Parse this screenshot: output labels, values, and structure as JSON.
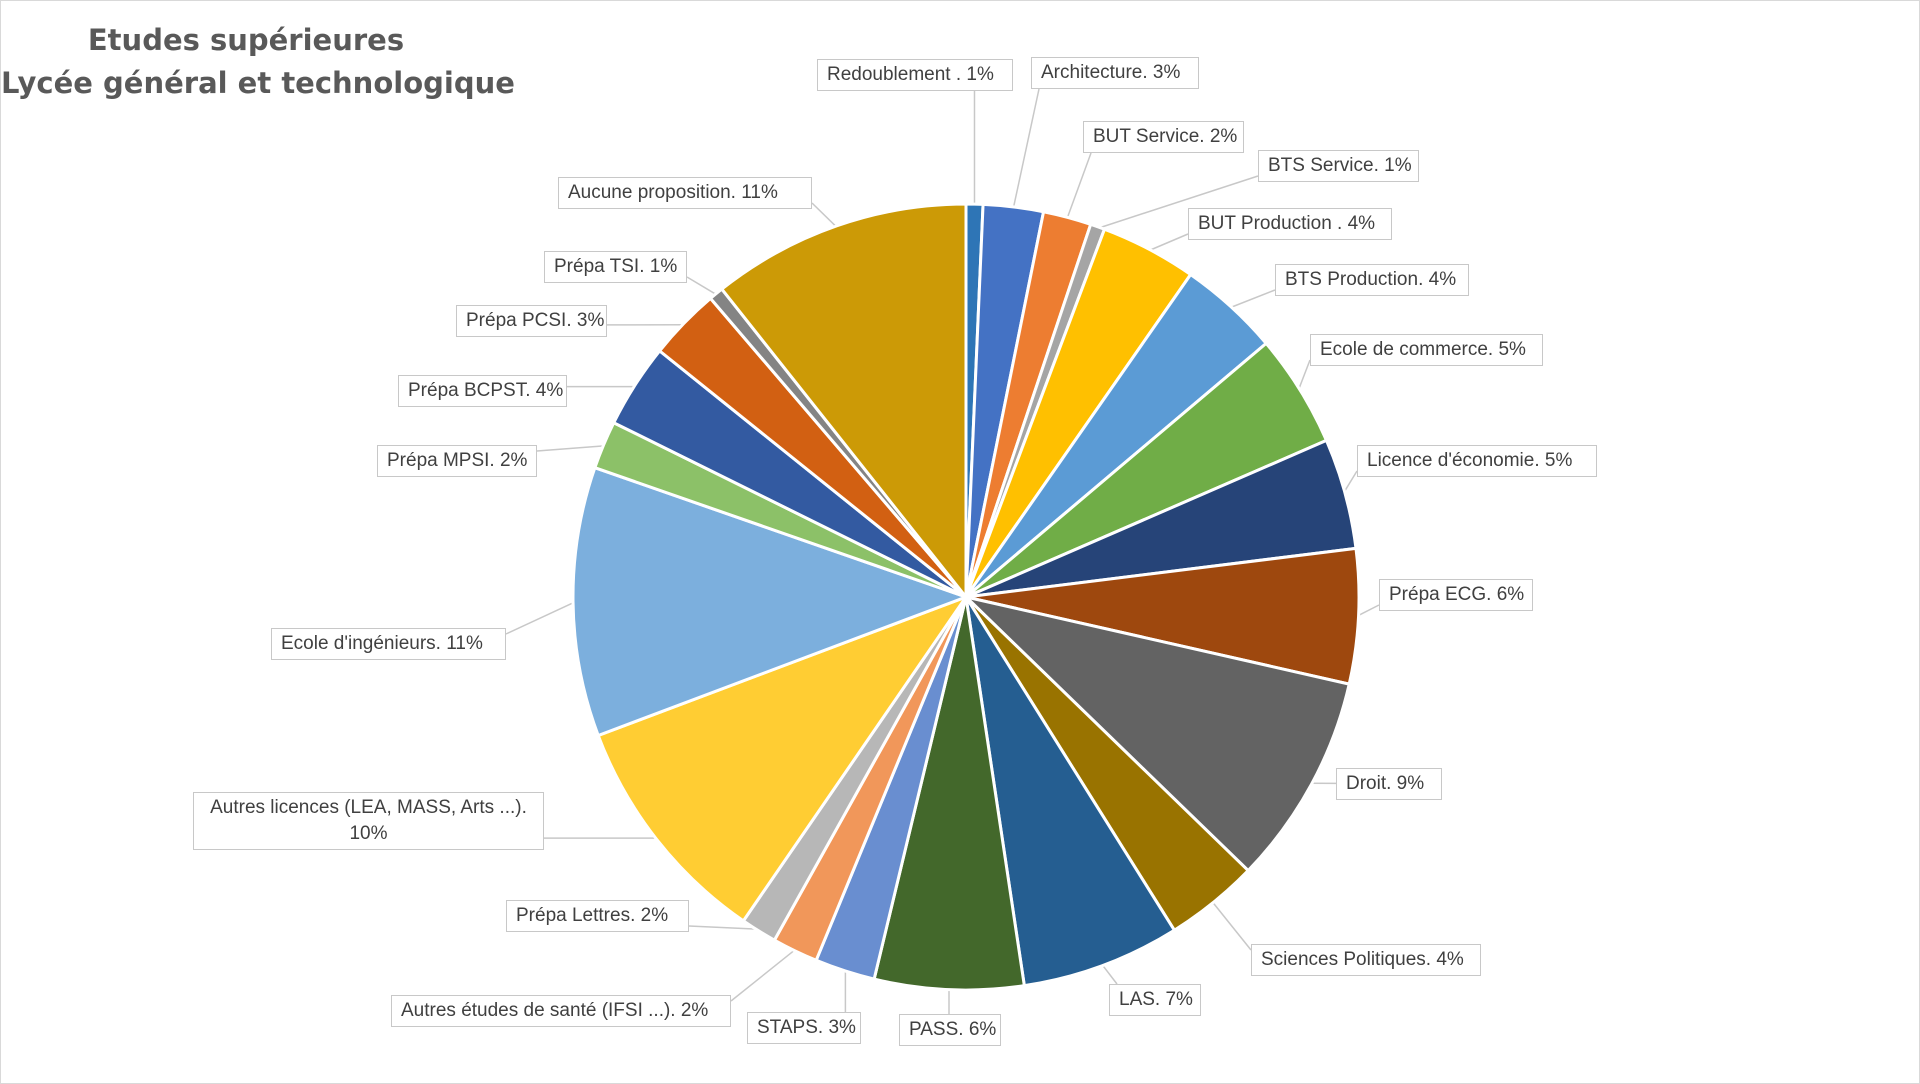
{
  "chart_data": {
    "type": "pie",
    "title": [
      "Etudes supérieures",
      "Lycée général et technologique"
    ],
    "slices": [
      {
        "label": "Redoublement . 1%",
        "value": 0.7,
        "color": "#2E75B6"
      },
      {
        "label": "Architecture. 3%",
        "value": 2.5,
        "color": "#4472C4"
      },
      {
        "label": "BUT Service. 2%",
        "value": 2.0,
        "color": "#ED7D31"
      },
      {
        "label": "BTS Service. 1%",
        "value": 0.6,
        "color": "#A5A5A5"
      },
      {
        "label": "BUT Production . 4%",
        "value": 4.0,
        "color": "#FFC000"
      },
      {
        "label": "BTS Production. 4%",
        "value": 4.2,
        "color": "#5B9BD5"
      },
      {
        "label": "Ecole de commerce. 5%",
        "value": 4.7,
        "color": "#70AD47"
      },
      {
        "label": "Licence d'économie. 5%",
        "value": 4.6,
        "color": "#264478"
      },
      {
        "label": "Prépa ECG. 6%",
        "value": 5.6,
        "color": "#9E480E"
      },
      {
        "label": "Droit. 9%",
        "value": 8.8,
        "color": "#636363"
      },
      {
        "label": "Sciences Politiques. 4%",
        "value": 3.9,
        "color": "#997300"
      },
      {
        "label": "LAS. 7%",
        "value": 6.6,
        "color": "#255E91"
      },
      {
        "label": "PASS. 6%",
        "value": 6.2,
        "color": "#43682B"
      },
      {
        "label": "STAPS. 3%",
        "value": 2.5,
        "color": "#698ED0"
      },
      {
        "label": "Autres études de santé (IFSI ...). 2%",
        "value": 1.9,
        "color": "#F1975A"
      },
      {
        "label": "Prépa Lettres. 2%",
        "value": 1.5,
        "color": "#B7B7B7"
      },
      {
        "label": "Autres licences (LEA, MASS, Arts ...). 10%",
        "value": 9.8,
        "color": "#FFCD33"
      },
      {
        "label": "Ecole d'ingénieurs. 11%",
        "value": 11.2,
        "color": "#7CAFDD"
      },
      {
        "label": "Prépa MPSI. 2%",
        "value": 2.0,
        "color": "#8CC168"
      },
      {
        "label": "Prépa BCPST. 4%",
        "value": 3.5,
        "color": "#335AA1"
      },
      {
        "label": "Prépa PCSI. 3%",
        "value": 3.0,
        "color": "#D26012"
      },
      {
        "label": "Prépa TSI. 1%",
        "value": 0.6,
        "color": "#848484"
      },
      {
        "label": "Aucune proposition. 11%",
        "value": 10.8,
        "color": "#CC9A06"
      }
    ],
    "legend": "none",
    "data_labels": "outside with leader lines"
  }
}
